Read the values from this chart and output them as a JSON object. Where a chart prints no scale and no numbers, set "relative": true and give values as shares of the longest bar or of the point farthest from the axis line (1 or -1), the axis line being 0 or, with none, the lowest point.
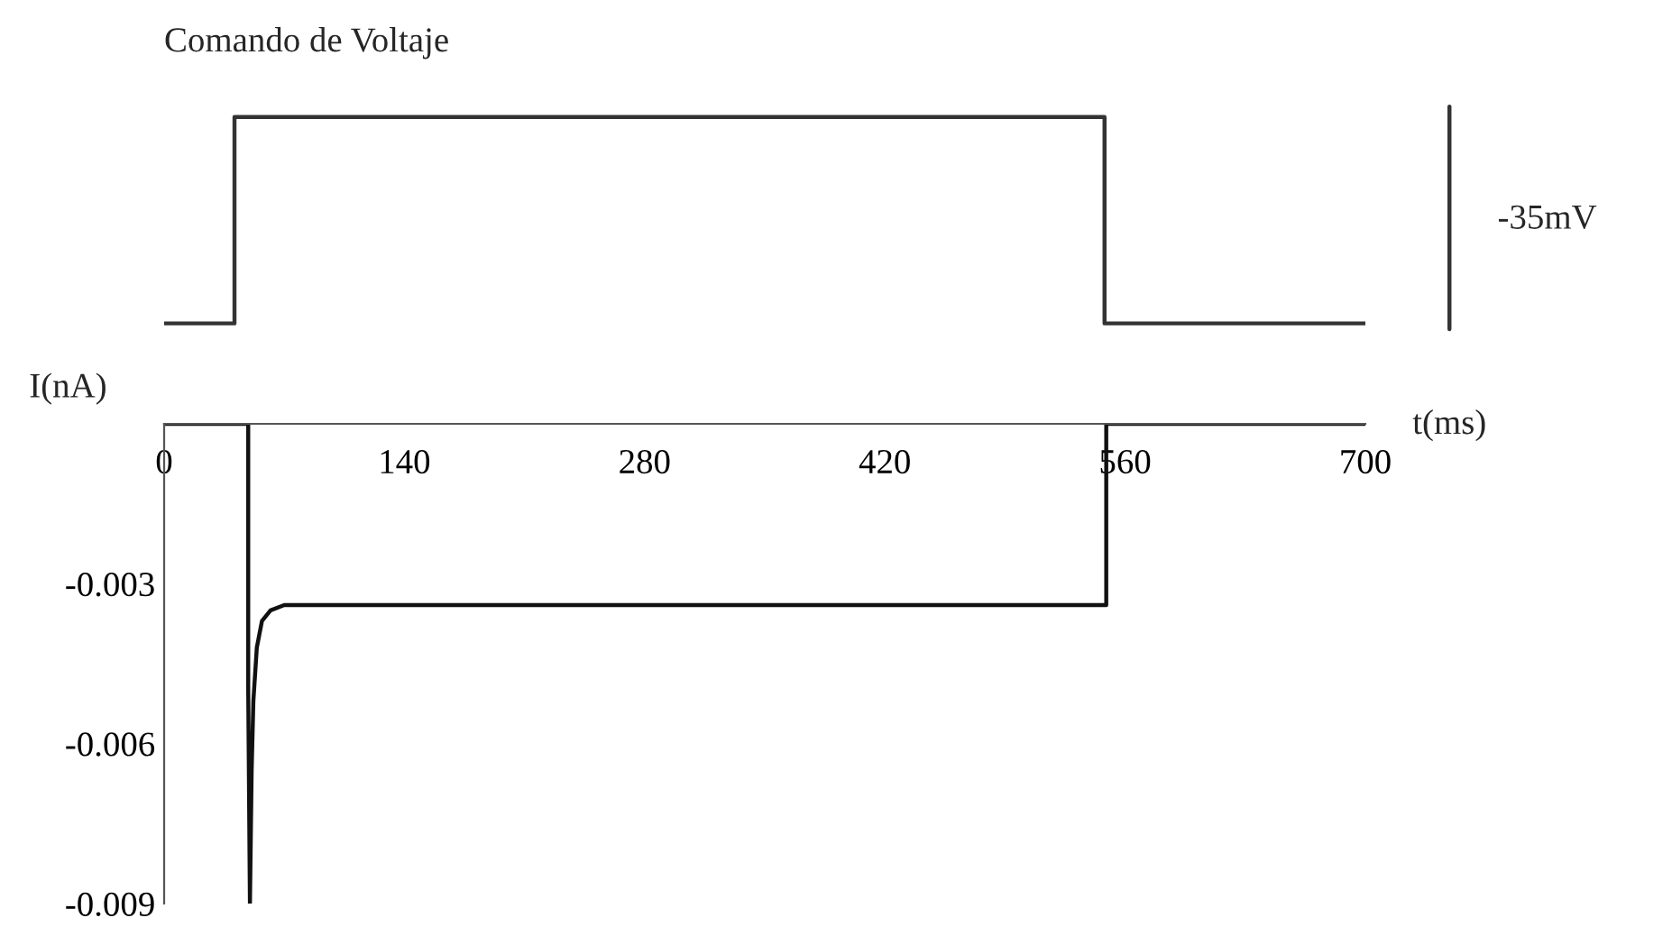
{
  "chart_data": [
    {
      "type": "line",
      "title": "Comando de Voltaje",
      "relative": true,
      "xlim": [
        0,
        700
      ],
      "annotations": [
        "-35mV"
      ],
      "series": [
        {
          "color": "#333333",
          "x": [
            0,
            41,
            41,
            548,
            548,
            700
          ],
          "values": [
            0,
            0,
            1,
            1,
            0,
            0
          ]
        }
      ]
    },
    {
      "type": "line",
      "xlabel": "t(ms)",
      "ylabel": "I(nA)",
      "xlim": [
        0,
        700
      ],
      "ylim": [
        -0.009,
        0
      ],
      "xticks": [
        0,
        140,
        280,
        420,
        560,
        700
      ],
      "yticks": [
        -0.003,
        -0.006,
        -0.009
      ],
      "grid": false,
      "series": [
        {
          "color": "#111111",
          "x": [
            0,
            49,
            49,
            50,
            51,
            52,
            54,
            57,
            62,
            70,
            549,
            549,
            700
          ],
          "values": [
            0,
            0,
            -0.005,
            -0.009,
            -0.0065,
            -0.0052,
            -0.0042,
            -0.0037,
            -0.0035,
            -0.0034,
            -0.0034,
            0,
            0
          ]
        }
      ]
    }
  ]
}
